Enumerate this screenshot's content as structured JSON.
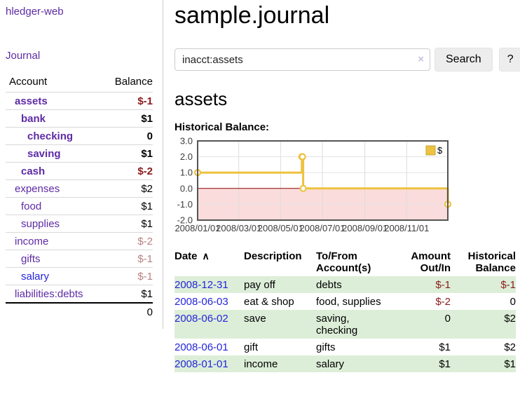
{
  "brand": "hledger-web",
  "nav": {
    "journal": "Journal"
  },
  "colors": {
    "purple": "#5e2ba5",
    "blue": "#2424dd",
    "neg_strong": "#8b1a1a",
    "neg_dim": "#b98080",
    "green_row": "#ddeed8",
    "gold": "#edc240",
    "pink": "#fbdcdc",
    "zero_line": "#8b0000"
  },
  "sidebar_accounts": {
    "headers": {
      "account": "Account",
      "balance": "Balance"
    },
    "rows": [
      {
        "name": "assets",
        "depth": 1,
        "bold": true,
        "balance": "$-1",
        "tone": "strong"
      },
      {
        "name": "bank",
        "depth": 2,
        "bold": true,
        "balance": "$1",
        "tone": "none"
      },
      {
        "name": "checking",
        "depth": 3,
        "bold": true,
        "balance": "0",
        "tone": "none"
      },
      {
        "name": "saving",
        "depth": 3,
        "bold": true,
        "balance": "$1",
        "tone": "none"
      },
      {
        "name": "cash",
        "depth": 2,
        "bold": true,
        "balance": "$-2",
        "tone": "strong"
      },
      {
        "name": "expenses",
        "depth": 1,
        "bold": false,
        "balance": "$2",
        "tone": "none"
      },
      {
        "name": "food",
        "depth": 2,
        "bold": false,
        "balance": "$1",
        "tone": "none"
      },
      {
        "name": "supplies",
        "depth": 2,
        "bold": false,
        "balance": "$1",
        "tone": "none"
      },
      {
        "name": "income",
        "depth": 1,
        "bold": false,
        "balance": "$-2",
        "tone": "dim"
      },
      {
        "name": "gifts",
        "depth": 2,
        "bold": false,
        "balance": "$-1",
        "tone": "dim"
      },
      {
        "name": "salary",
        "depth": 2,
        "bold": false,
        "balance": "$-1",
        "tone": "dim",
        "link_style": "unvisited"
      },
      {
        "name": "liabilities:debts",
        "depth": 1,
        "bold": false,
        "balance": "$1",
        "tone": "none"
      }
    ],
    "total": "0"
  },
  "header": {
    "title": "sample.journal"
  },
  "search": {
    "value": "inacct:assets",
    "clear_icon": "×",
    "button": "Search",
    "help_button": "?"
  },
  "account_page": {
    "title": "assets",
    "chart_label": "Historical Balance:"
  },
  "chart_data": {
    "type": "line",
    "step": true,
    "title": "Historical Balance",
    "series": [
      {
        "name": "$",
        "color": "#edc240",
        "points": [
          [
            "2008-01-01",
            1
          ],
          [
            "2008-06-01",
            2
          ],
          [
            "2008-06-02",
            2
          ],
          [
            "2008-06-03",
            0
          ],
          [
            "2008-12-31",
            -1
          ]
        ]
      }
    ],
    "x_ticks": [
      "2008/01/01",
      "2008/03/01",
      "2008/05/01",
      "2008/07/01",
      "2008/09/01",
      "2008/11/01"
    ],
    "y_ticks": [
      "3.0",
      "2.0",
      "1.0",
      "0.0",
      "-1.0",
      "-2.0"
    ],
    "xlim": [
      "2008-01-01",
      "2008-12-31"
    ],
    "ylim": [
      -2,
      3
    ],
    "grid": true,
    "legend_position": "top-right",
    "negative_region_color": "#fbdcdc",
    "zero_line_color": "#8b0000"
  },
  "transactions": {
    "headers": {
      "date": "Date",
      "sort_icon": "∧",
      "description": "Description",
      "account": "To/From\nAccount(s)",
      "amount": "Amount\nOut/In",
      "balance": "Historical\nBalance"
    },
    "rows": [
      {
        "date": "2008-12-31",
        "description": "pay off",
        "account": "debts",
        "amount": "$-1",
        "amount_neg": true,
        "balance": "$-1",
        "balance_neg": true,
        "highlight": true
      },
      {
        "date": "2008-06-03",
        "description": "eat & shop",
        "account": "food, supplies",
        "amount": "$-2",
        "amount_neg": true,
        "balance": "0",
        "balance_neg": false,
        "highlight": false
      },
      {
        "date": "2008-06-02",
        "description": "save",
        "account": "saving,\nchecking",
        "amount": "0",
        "amount_neg": false,
        "balance": "$2",
        "balance_neg": false,
        "highlight": true
      },
      {
        "date": "2008-06-01",
        "description": "gift",
        "account": "gifts",
        "amount": "$1",
        "amount_neg": false,
        "balance": "$2",
        "balance_neg": false,
        "highlight": false
      },
      {
        "date": "2008-01-01",
        "description": "income",
        "account": "salary",
        "amount": "$1",
        "amount_neg": false,
        "balance": "$1",
        "balance_neg": false,
        "highlight": true
      }
    ]
  }
}
